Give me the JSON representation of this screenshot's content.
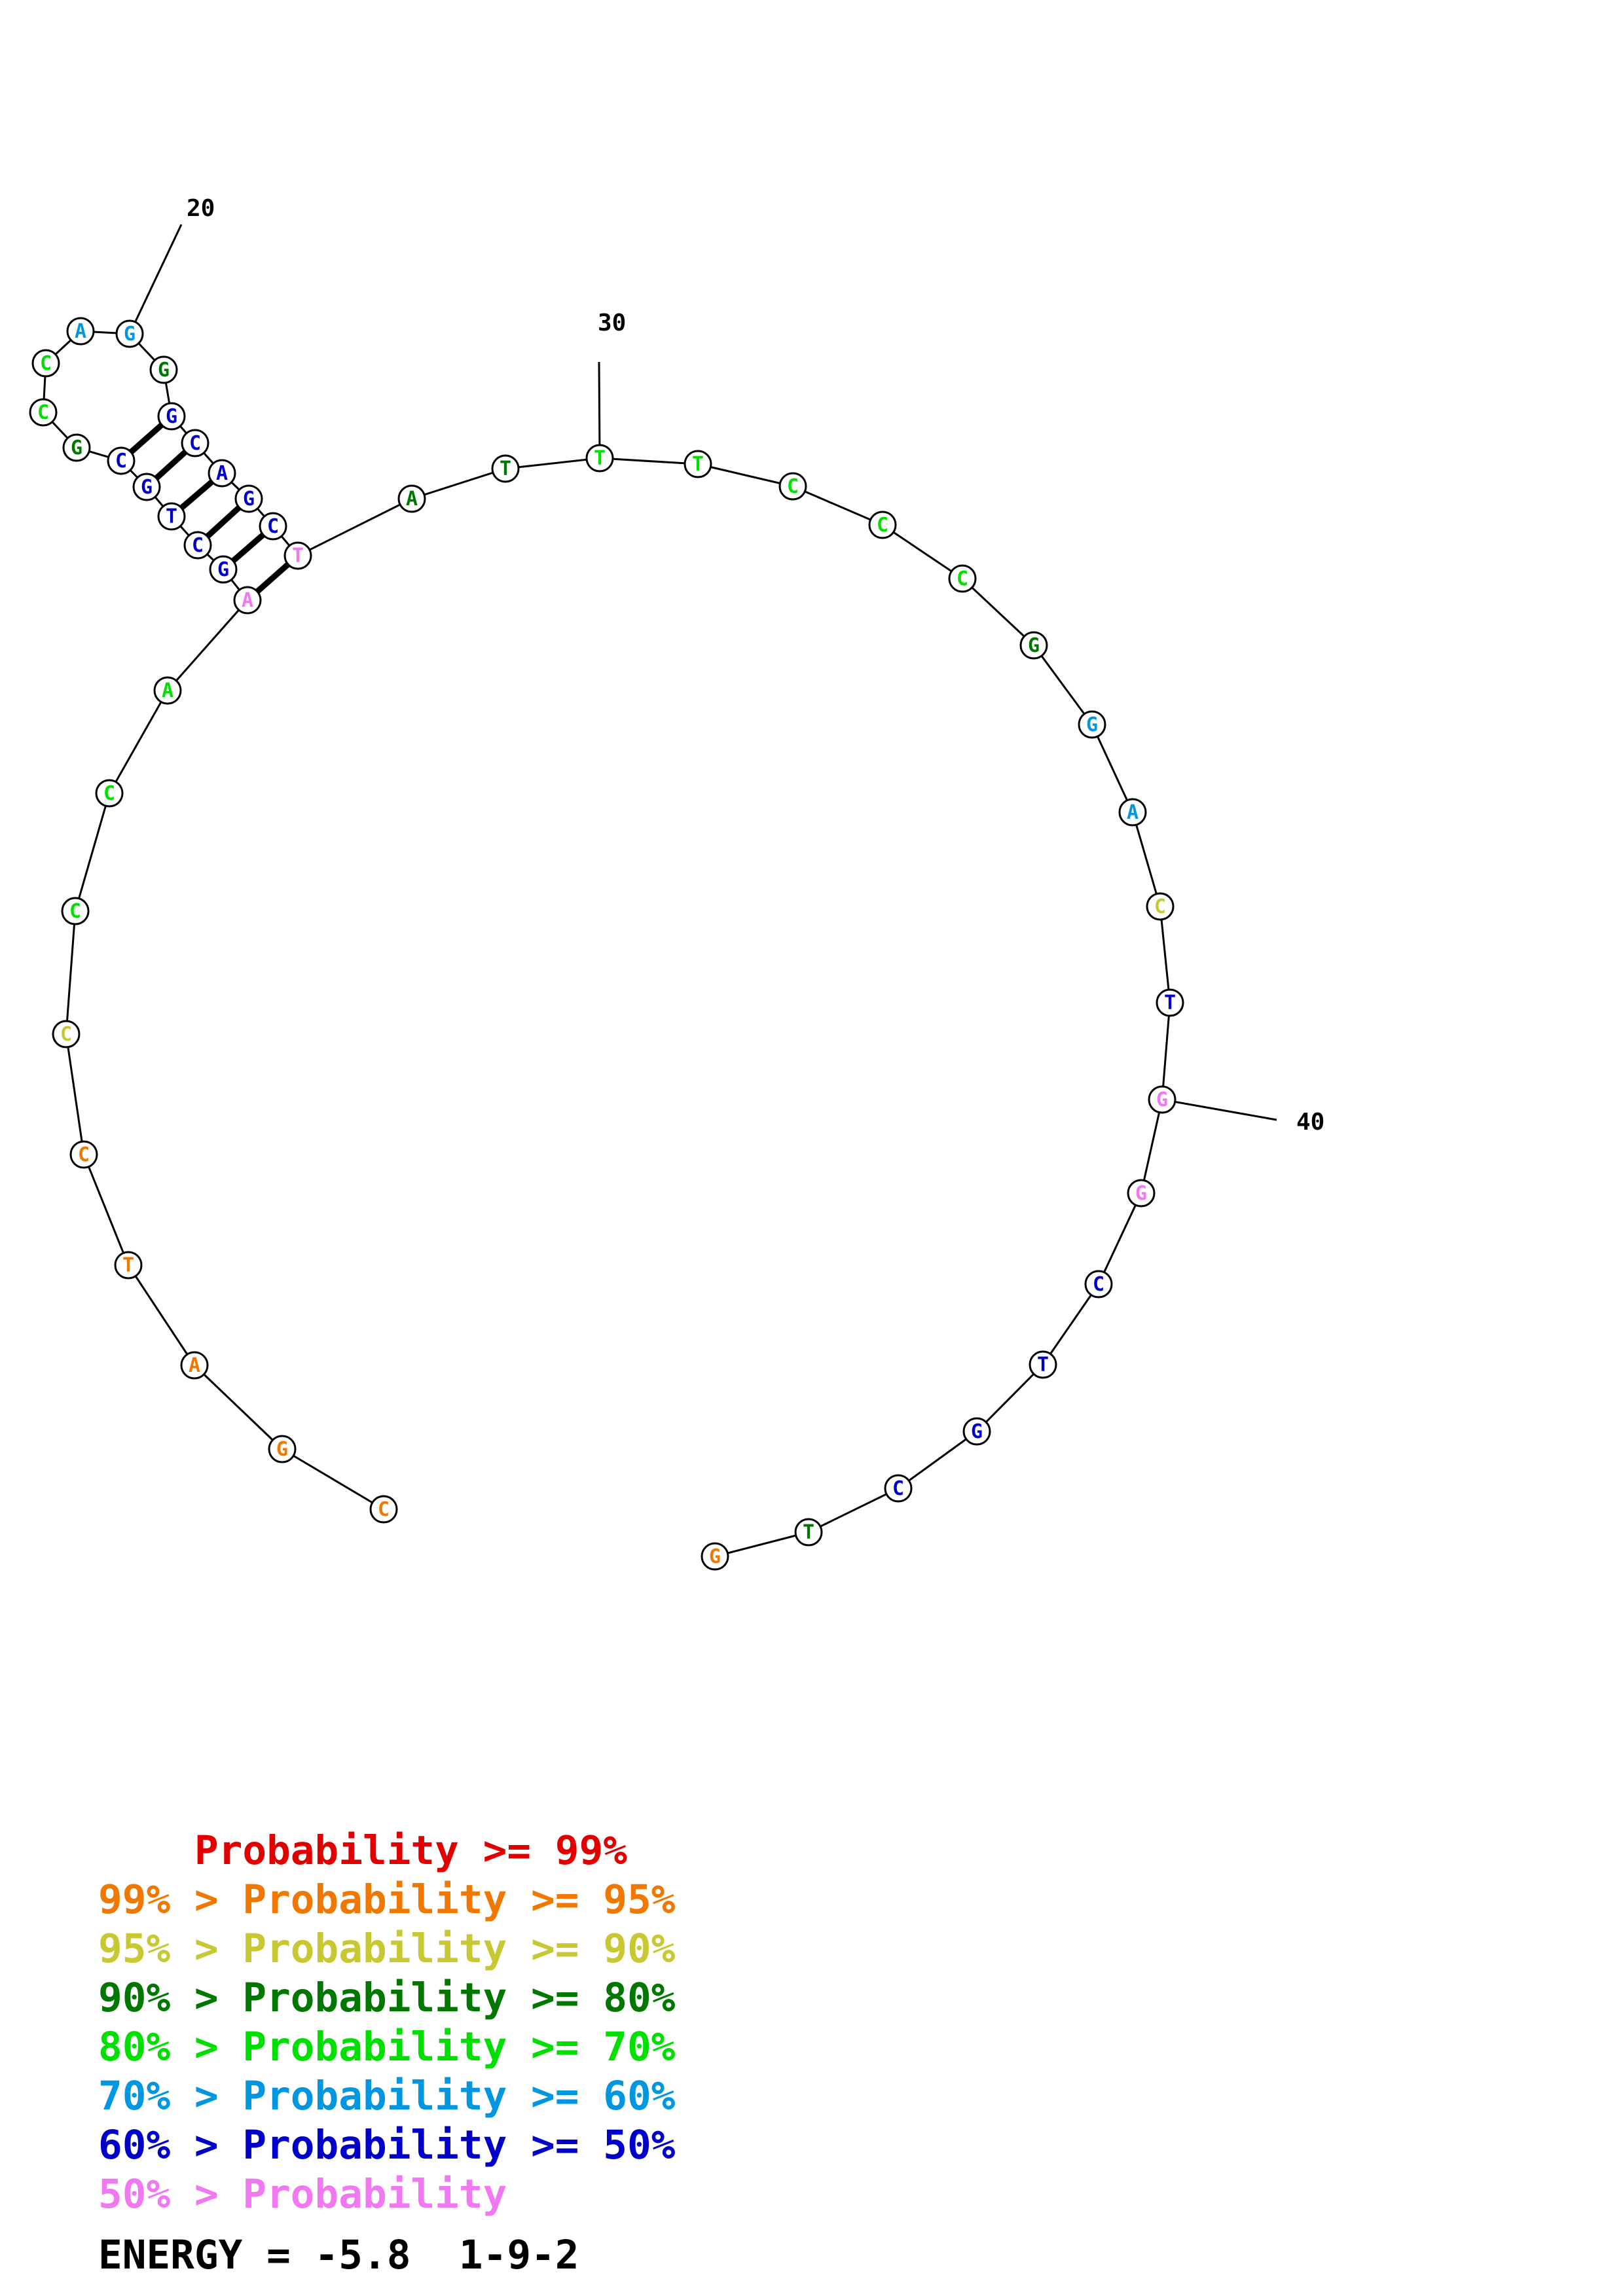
{
  "colors": {
    "red": "#e00000",
    "orange": "#f07800",
    "yellow": "#c8c832",
    "darkgreen": "#007800",
    "green": "#00e000",
    "cyan": "#0096e0",
    "blue": "#0000c8",
    "pink": "#f078f0"
  },
  "sequence": [
    {
      "letter": "C",
      "color": "orange"
    },
    {
      "letter": "G",
      "color": "orange"
    },
    {
      "letter": "A",
      "color": "orange"
    },
    {
      "letter": "T",
      "color": "orange"
    },
    {
      "letter": "C",
      "color": "orange"
    },
    {
      "letter": "C",
      "color": "yellow"
    },
    {
      "letter": "C",
      "color": "green"
    },
    {
      "letter": "C",
      "color": "green"
    },
    {
      "letter": "A",
      "color": "green"
    },
    {
      "letter": "A",
      "color": "pink"
    },
    {
      "letter": "G",
      "color": "blue"
    },
    {
      "letter": "C",
      "color": "blue"
    },
    {
      "letter": "T",
      "color": "blue"
    },
    {
      "letter": "G",
      "color": "blue"
    },
    {
      "letter": "C",
      "color": "blue"
    },
    {
      "letter": "G",
      "color": "darkgreen"
    },
    {
      "letter": "C",
      "color": "green"
    },
    {
      "letter": "C",
      "color": "green"
    },
    {
      "letter": "A",
      "color": "cyan"
    },
    {
      "letter": "G",
      "color": "cyan"
    },
    {
      "letter": "G",
      "color": "darkgreen"
    },
    {
      "letter": "G",
      "color": "blue"
    },
    {
      "letter": "C",
      "color": "blue"
    },
    {
      "letter": "A",
      "color": "blue"
    },
    {
      "letter": "G",
      "color": "blue"
    },
    {
      "letter": "C",
      "color": "blue"
    },
    {
      "letter": "T",
      "color": "pink"
    },
    {
      "letter": "A",
      "color": "darkgreen"
    },
    {
      "letter": "T",
      "color": "darkgreen"
    },
    {
      "letter": "T",
      "color": "green"
    },
    {
      "letter": "T",
      "color": "green"
    },
    {
      "letter": "C",
      "color": "green"
    },
    {
      "letter": "C",
      "color": "green"
    },
    {
      "letter": "C",
      "color": "green"
    },
    {
      "letter": "G",
      "color": "darkgreen"
    },
    {
      "letter": "G",
      "color": "cyan"
    },
    {
      "letter": "A",
      "color": "cyan"
    },
    {
      "letter": "C",
      "color": "yellow"
    },
    {
      "letter": "T",
      "color": "blue"
    },
    {
      "letter": "G",
      "color": "pink"
    },
    {
      "letter": "G",
      "color": "pink"
    },
    {
      "letter": "C",
      "color": "blue"
    },
    {
      "letter": "T",
      "color": "blue"
    },
    {
      "letter": "G",
      "color": "blue"
    },
    {
      "letter": "C",
      "color": "blue"
    },
    {
      "letter": "T",
      "color": "darkgreen"
    },
    {
      "letter": "G",
      "color": "orange"
    }
  ],
  "pairs": [
    [
      10,
      27
    ],
    [
      11,
      26
    ],
    [
      12,
      25
    ],
    [
      13,
      24
    ],
    [
      14,
      23
    ],
    [
      15,
      22
    ]
  ],
  "position_labels": [
    {
      "index": 20,
      "text": "20"
    },
    {
      "index": 30,
      "text": "30"
    },
    {
      "index": 40,
      "text": "40"
    }
  ],
  "legend": [
    {
      "prefix": "    ",
      "text": "    Probability >= 99%",
      "color": "red"
    },
    {
      "prefix": "",
      "text": "99% > Probability >= 95%",
      "color": "orange"
    },
    {
      "prefix": "",
      "text": "95% > Probability >= 90%",
      "color": "yellow"
    },
    {
      "prefix": "",
      "text": "90% > Probability >= 80%",
      "color": "darkgreen"
    },
    {
      "prefix": "",
      "text": "80% > Probability >= 70%",
      "color": "green"
    },
    {
      "prefix": "",
      "text": "70% > Probability >= 60%",
      "color": "cyan"
    },
    {
      "prefix": "",
      "text": "60% > Probability >= 50%",
      "color": "blue"
    },
    {
      "prefix": "",
      "text": "50% > Probability",
      "color": "pink"
    }
  ],
  "energy_text": "ENERGY = -5.8  1-9-2"
}
